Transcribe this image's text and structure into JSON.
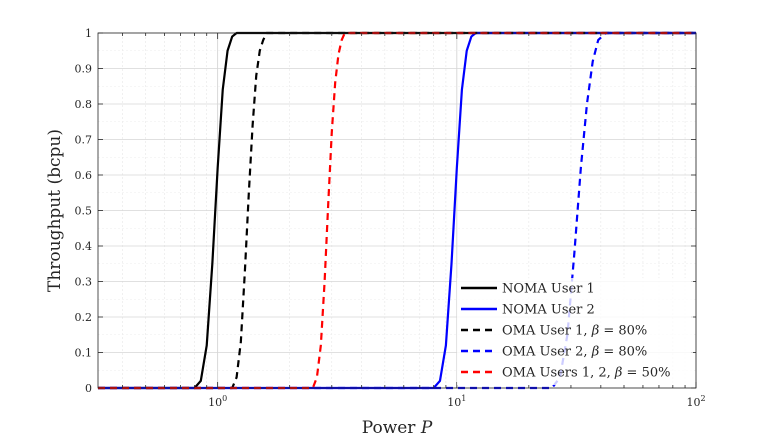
{
  "chart_data": {
    "type": "line",
    "xlabel": "Power P",
    "ylabel": "Throughput (bcpu)",
    "x_scale": "log",
    "xlim": [
      0.316,
      100
    ],
    "ylim": [
      0,
      1
    ],
    "grid": true,
    "x_ticks": [
      {
        "value": 1,
        "label": "10",
        "exp": "0"
      },
      {
        "value": 10,
        "label": "10",
        "exp": "1"
      },
      {
        "value": 100,
        "label": "10",
        "exp": "2"
      }
    ],
    "y_ticks": [
      {
        "value": 0,
        "label": "0"
      },
      {
        "value": 0.1,
        "label": "0.1"
      },
      {
        "value": 0.2,
        "label": "0.2"
      },
      {
        "value": 0.3,
        "label": "0.3"
      },
      {
        "value": 0.4,
        "label": "0.4"
      },
      {
        "value": 0.5,
        "label": "0.5"
      },
      {
        "value": 0.6,
        "label": "0.6"
      },
      {
        "value": 0.7,
        "label": "0.7"
      },
      {
        "value": 0.8,
        "label": "0.8"
      },
      {
        "value": 0.9,
        "label": "0.9"
      },
      {
        "value": 1,
        "label": "1"
      }
    ],
    "legend_position": "bottom-right",
    "series": [
      {
        "name": "NOMA User 1",
        "color": "#000000",
        "dash": "solid",
        "x": [
          0.316,
          0.8,
          0.85,
          0.9,
          0.95,
          1.0,
          1.05,
          1.1,
          1.15,
          1.2,
          1.25,
          100
        ],
        "y": [
          0,
          0,
          0.02,
          0.12,
          0.35,
          0.62,
          0.84,
          0.95,
          0.99,
          1,
          1,
          1
        ]
      },
      {
        "name": "NOMA User 2",
        "color": "#0000ff",
        "dash": "solid",
        "x": [
          0.316,
          8.0,
          8.5,
          9.0,
          9.5,
          10.0,
          10.5,
          11.0,
          11.5,
          12.0,
          12.5,
          100
        ],
        "y": [
          0,
          0,
          0.02,
          0.12,
          0.35,
          0.62,
          0.84,
          0.95,
          0.99,
          1,
          1,
          1
        ]
      },
      {
        "name": "OMA User 1, β = 80%",
        "label_main": "OMA User 1, ",
        "label_beta": "β",
        "label_rest": " = 80%",
        "color": "#000000",
        "dash": "dashed",
        "x": [
          0.316,
          1.15,
          1.2,
          1.25,
          1.3,
          1.35,
          1.4,
          1.45,
          1.5,
          1.55,
          1.6,
          1.7,
          100
        ],
        "y": [
          0,
          0,
          0.03,
          0.13,
          0.33,
          0.55,
          0.74,
          0.88,
          0.95,
          0.98,
          1,
          1,
          1
        ]
      },
      {
        "name": "OMA User 2, β = 80%",
        "label_main": "OMA User 2, ",
        "label_beta": "β",
        "label_rest": " = 80%",
        "color": "#0000ff",
        "dash": "dashed",
        "x": [
          0.316,
          25,
          27,
          29,
          31,
          33,
          35,
          37,
          39,
          42,
          100
        ],
        "y": [
          0,
          0,
          0.03,
          0.15,
          0.38,
          0.62,
          0.8,
          0.92,
          0.98,
          1,
          1
        ]
      },
      {
        "name": "OMA Users 1, 2, β = 50%",
        "label_main": "OMA Users 1, 2, ",
        "label_beta": "β",
        "label_rest": " = 50%",
        "color": "#ff0000",
        "dash": "dashed",
        "x": [
          0.316,
          2.5,
          2.6,
          2.7,
          2.8,
          2.9,
          3.0,
          3.1,
          3.2,
          3.3,
          3.4,
          3.6,
          100
        ],
        "y": [
          0,
          0,
          0.03,
          0.12,
          0.3,
          0.52,
          0.72,
          0.86,
          0.94,
          0.98,
          1,
          1,
          1
        ]
      }
    ]
  }
}
